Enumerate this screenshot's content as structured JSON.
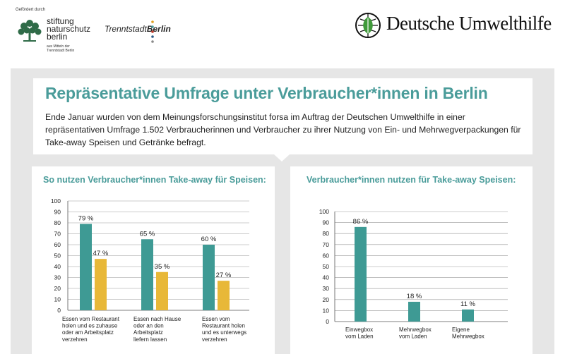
{
  "header": {
    "funded_by": "Gefördert durch",
    "stiftung_lines": [
      "stiftung",
      "naturschutz",
      "berlin"
    ],
    "stiftung_sub": [
      "aus Mitteln der",
      "Trenntstadt Berlin"
    ],
    "trenn_prefix": "Trenntstadt",
    "trenn_bold": "Berlin",
    "trenn_dot_colors": [
      "#e0a020",
      "#4a9c9a",
      "#c0392b",
      "#2e5f8a",
      "#8a8a8a"
    ],
    "duh_name": "Deutsche Umwelthilfe"
  },
  "intro": {
    "title": "Repräsentative Umfrage unter Verbraucher*innen in Berlin",
    "text": "Ende Januar wurden von dem Meinungsforschungsinstitut forsa im Auftrag der Deutschen Umwelthilfe in einer repräsentativen Umfrage 1.502 Verbraucherinnen und Verbraucher zu ihrer Nutzung von Ein- und Mehrwegverpackungen für Take-away Speisen und Getränke befragt."
  },
  "colors": {
    "accent": "#4a9c9a",
    "teal_bar": "#3e9a94",
    "yellow_bar": "#e8b838",
    "panel_bg": "#e6e6e6"
  },
  "chart_data": [
    {
      "type": "bar",
      "title": "So nutzen Verbraucher*innen Take-away für Speisen:",
      "categories": [
        [
          "Essen vom Restaurant",
          "holen und es zuhause",
          "oder am Arbeitsplatz",
          "verzehren"
        ],
        [
          "Essen nach Hause",
          "oder an den",
          "Arbeitsplatz",
          "liefern lassen"
        ],
        [
          "Essen vom",
          "Restaurant holen",
          "und es unterwegs",
          "verzehren"
        ]
      ],
      "series": [
        {
          "values": [
            79,
            65,
            60
          ],
          "labels": [
            "79 %",
            "65 %",
            "60 %"
          ],
          "color": "#3e9a94"
        },
        {
          "values": [
            47,
            35,
            27
          ],
          "labels": [
            "47 %",
            "35 %",
            "27 %"
          ],
          "color": "#e8b838"
        }
      ],
      "ylim": [
        0,
        100
      ],
      "yticks": [
        0,
        10,
        20,
        30,
        40,
        50,
        60,
        70,
        80,
        90,
        100
      ],
      "grid": true,
      "xlabel": "",
      "ylabel": ""
    },
    {
      "type": "bar",
      "title": "Verbraucher*innen nutzen für Take-away Speisen:",
      "categories": [
        [
          "Einwegbox",
          "vom Laden"
        ],
        [
          "Mehrwegbox",
          "vom Laden"
        ],
        [
          "Eigene",
          "Mehrwegbox"
        ]
      ],
      "series": [
        {
          "values": [
            86,
            18,
            11
          ],
          "labels": [
            "86 %",
            "18 %",
            "11 %"
          ],
          "color": "#3e9a94"
        }
      ],
      "ylim": [
        0,
        100
      ],
      "yticks": [
        0,
        10,
        20,
        30,
        40,
        50,
        60,
        70,
        80,
        90,
        100
      ],
      "grid": true,
      "xlabel": "",
      "ylabel": ""
    }
  ]
}
